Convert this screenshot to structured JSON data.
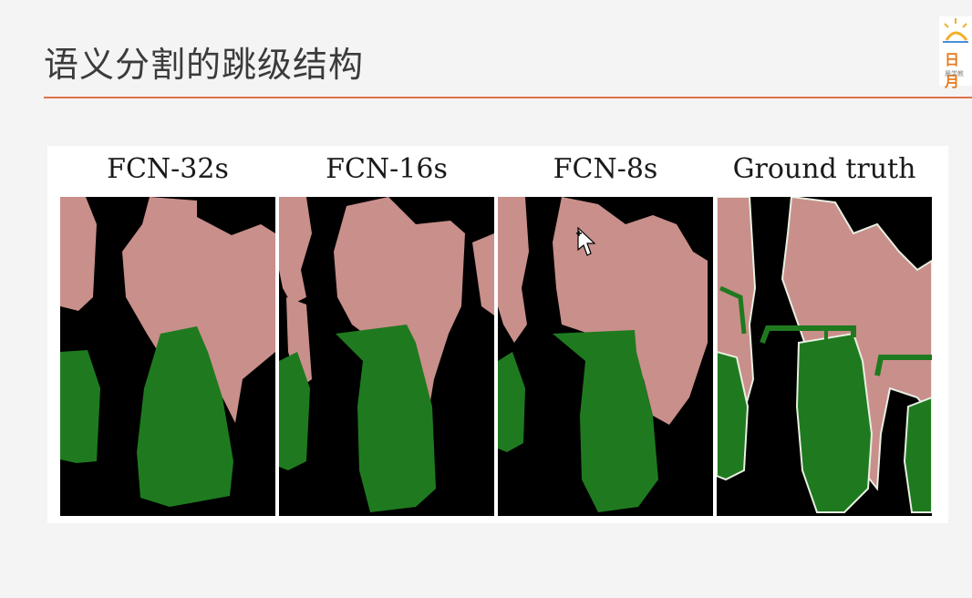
{
  "slide": {
    "title": "语义分割的跳级结构",
    "logo_text": "日月",
    "logo_sub": "晨学教"
  },
  "figure": {
    "panels": [
      {
        "caption": "FCN-32s"
      },
      {
        "caption": "FCN-16s"
      },
      {
        "caption": "FCN-8s"
      },
      {
        "caption": "Ground truth"
      }
    ]
  },
  "colors": {
    "title_rule": "#e0734a",
    "person": "#c98f8b",
    "bicycle": "#1f7a1f",
    "background": "#000000",
    "boundary": "#e8efe2"
  },
  "icons": {
    "cursor": "move-cursor-icon",
    "logo": "sun-logo-icon"
  }
}
